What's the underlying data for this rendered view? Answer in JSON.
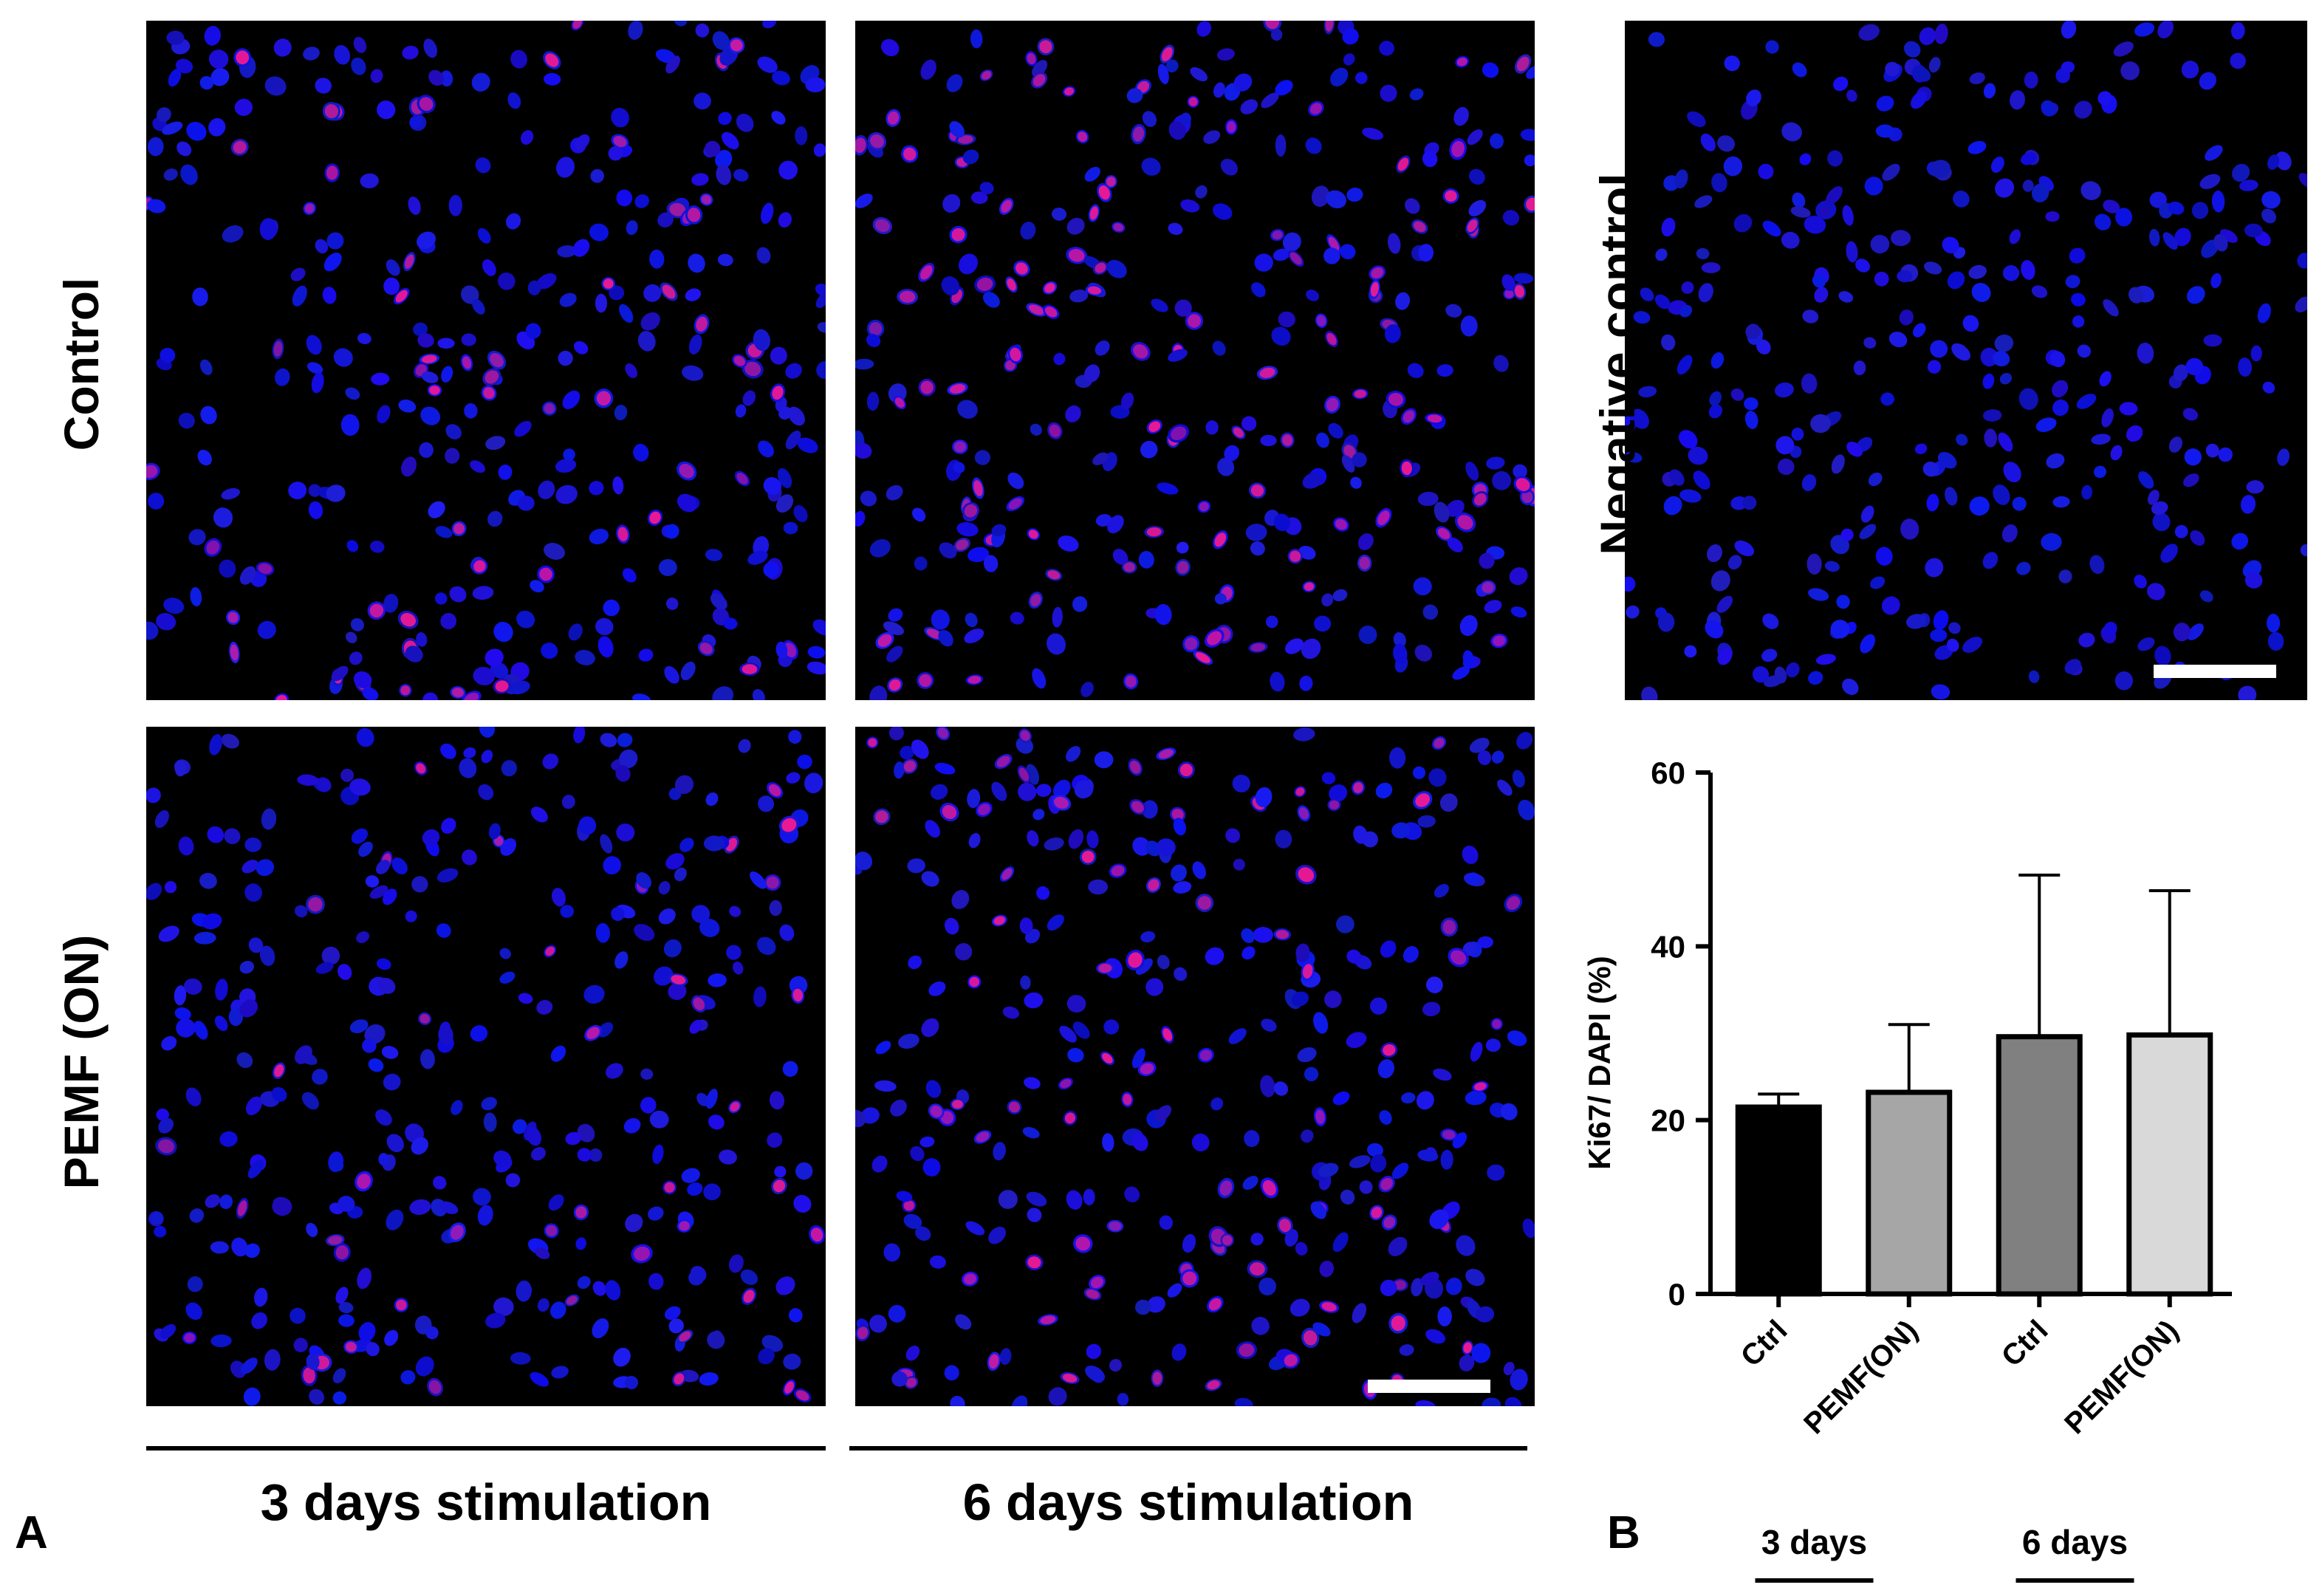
{
  "panels": {
    "label_a": "A",
    "label_b": "B"
  },
  "row_labels": {
    "control": "Control",
    "pemf": "PEMF (ON)",
    "negative": "Negative control"
  },
  "column_labels": {
    "day3": "3 days stimulation",
    "day6": "6 days stimulation"
  },
  "colors": {
    "nucleus": "#1a0fe0",
    "ki67": "#ff1a8c",
    "background": "#000000",
    "scale_bar": "#ffffff"
  },
  "chart_data": {
    "type": "bar",
    "title": "",
    "xlabel": "",
    "ylabel": "Ki67/ DAPI (%)",
    "ylim": [
      0,
      60
    ],
    "yticks": [
      0,
      20,
      40,
      60
    ],
    "categories": [
      "Ctrl",
      "PEMF(ON)",
      "Ctrl",
      "PEMF(ON)"
    ],
    "values": [
      21.5,
      23.2,
      29.6,
      29.8
    ],
    "error_upper": [
      1.5,
      7.8,
      18.6,
      16.6
    ],
    "bar_colors": [
      "#000000",
      "#a6a6a6",
      "#808080",
      "#d9d9d9"
    ],
    "groups": [
      {
        "label": "3 days",
        "members": [
          0,
          1
        ]
      },
      {
        "label": "6 days",
        "members": [
          2,
          3
        ]
      }
    ]
  }
}
